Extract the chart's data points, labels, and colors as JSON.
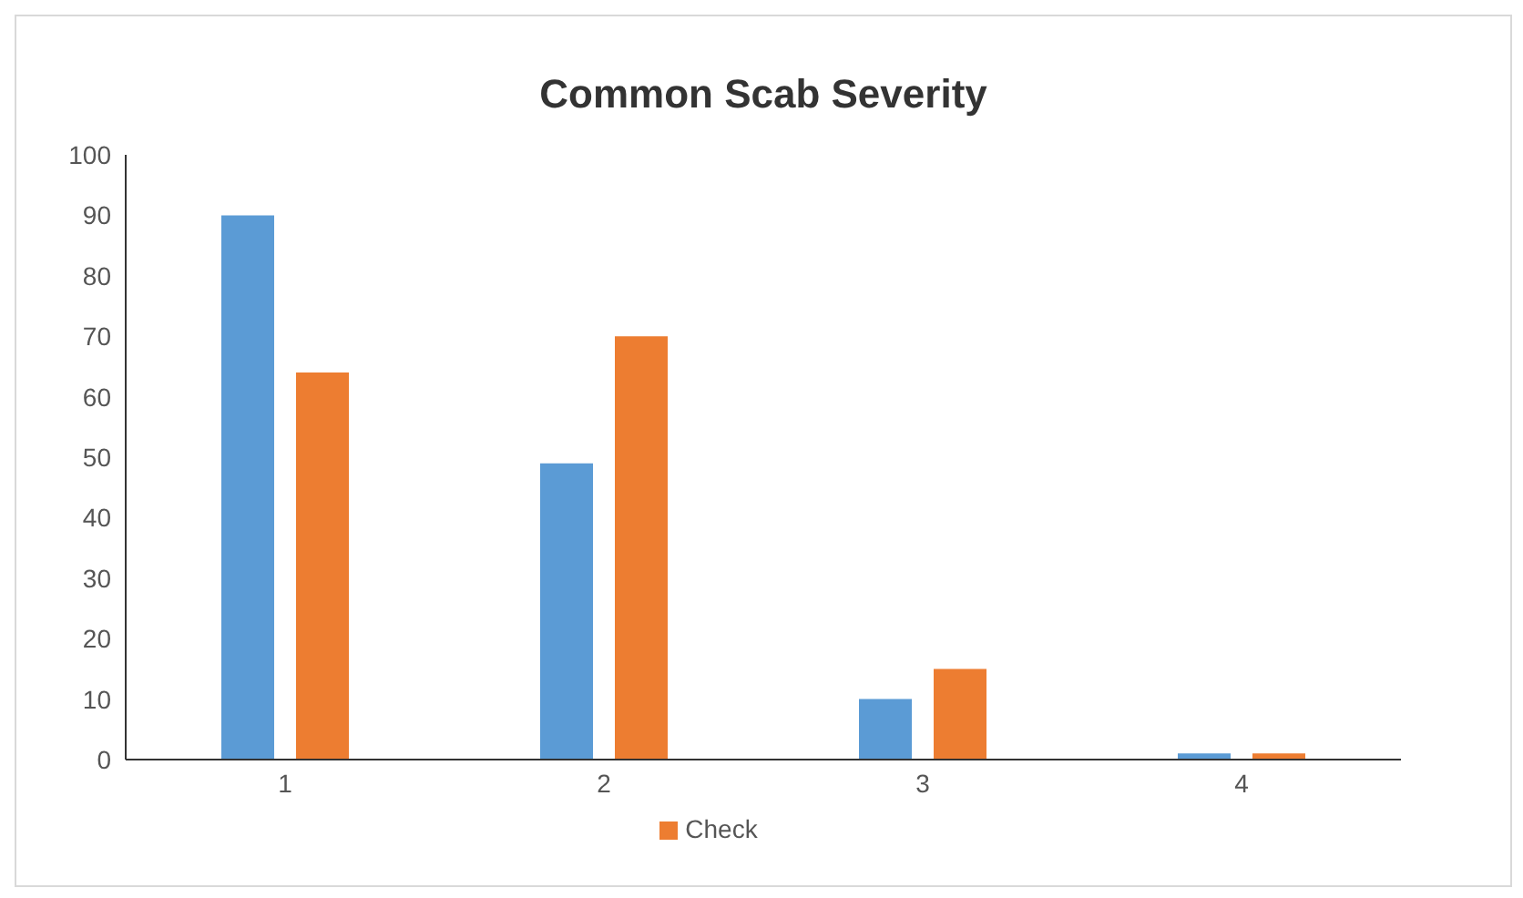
{
  "chart_data": {
    "type": "bar",
    "title": "Common Scab Severity",
    "categories": [
      "1",
      "2",
      "3",
      "4"
    ],
    "series": [
      {
        "color": "#5b9bd5",
        "values": [
          90,
          49,
          10,
          1
        ]
      },
      {
        "name": "Check",
        "color": "#ed7d31",
        "values": [
          64,
          70,
          15,
          1
        ]
      }
    ],
    "ylim": [
      0,
      100
    ],
    "yticks": [
      0,
      10,
      20,
      30,
      40,
      50,
      60,
      70,
      80,
      90,
      100
    ],
    "grid": false,
    "legend": "bottom"
  }
}
